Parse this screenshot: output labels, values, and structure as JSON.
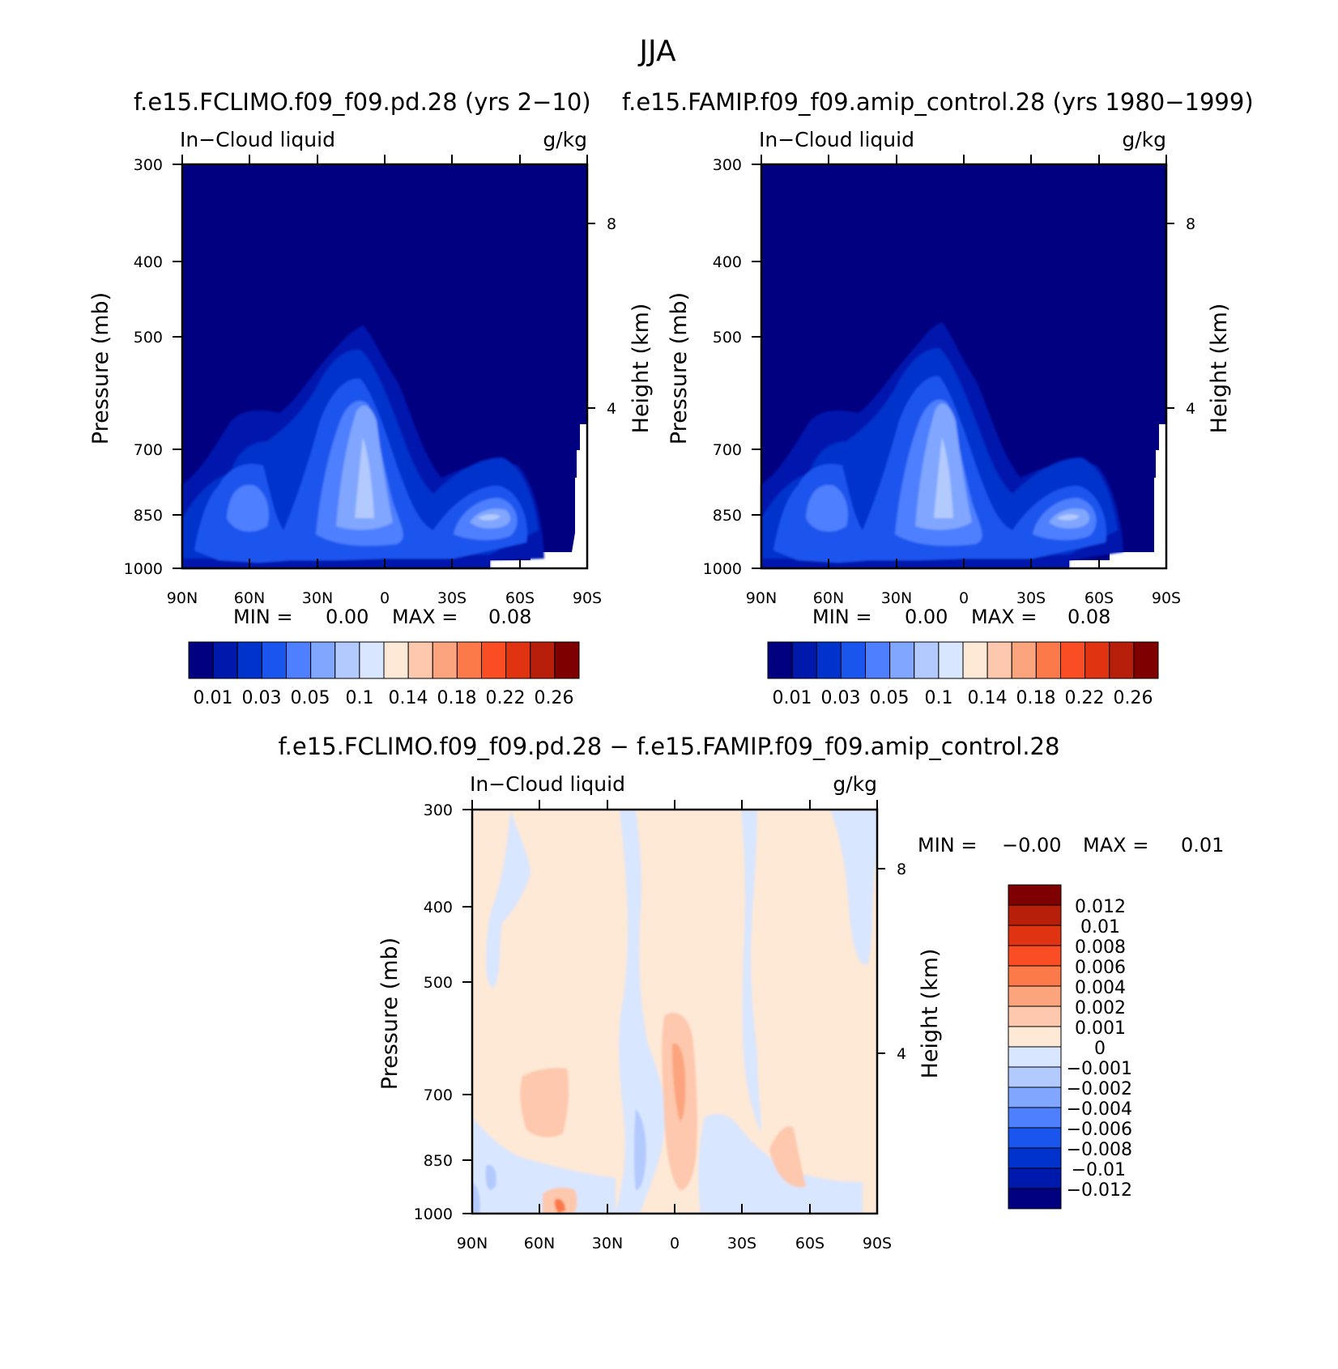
{
  "figure": {
    "suptitle": "JJA",
    "diff_title": "f.e15.FCLIMO.f09_f09.pd.28 − f.e15.FAMIP.f09_f09.amip_control.28"
  },
  "colors": {
    "abs_palette": [
      "#000080",
      "#0019ad",
      "#0033cc",
      "#1a55ee",
      "#4d7fff",
      "#80a6ff",
      "#b3caff",
      "#d9e6ff",
      "#fee8d6",
      "#fdc8ad",
      "#fca47e",
      "#fc7a4a",
      "#fa4d24",
      "#e03312",
      "#b81f0b",
      "#7f0000"
    ],
    "diff_palette": [
      "#000080",
      "#0019ad",
      "#0033cc",
      "#1a55ee",
      "#4d7fff",
      "#80a6ff",
      "#b3caff",
      "#d9e6ff",
      "#fee8d6",
      "#fdc8ad",
      "#fca47e",
      "#fc7a4a",
      "#fa4d24",
      "#e03312",
      "#b81f0b",
      "#7f0000"
    ]
  },
  "chart_data": [
    {
      "type": "heatmap",
      "title": "f.e15.FCLIMO.f09_f09.pd.28 (yrs 2−10)",
      "left_label": "In−Cloud liquid",
      "right_label": "g/kg",
      "ylabel": "Pressure (mb)",
      "ylabel_right": "Height (km)",
      "x_ticks": [
        "90N",
        "60N",
        "30N",
        "0",
        "30S",
        "60S",
        "90S"
      ],
      "y_ticks": [
        "300",
        "400",
        "500",
        "700",
        "850",
        "1000"
      ],
      "y_ticks_right": [
        "8",
        "4"
      ],
      "min_label": "MIN =",
      "min_value": "0.00",
      "max_label": "MAX =",
      "max_value": "0.08",
      "colorbar_ticks": [
        "0.01",
        "0.03",
        "0.05",
        "0.1",
        "0.14",
        "0.18",
        "0.22",
        "0.26"
      ]
    },
    {
      "type": "heatmap",
      "title": "f.e15.FAMIP.f09_f09.amip_control.28 (yrs 1980−1999)",
      "left_label": "In−Cloud liquid",
      "right_label": "g/kg",
      "ylabel": "Pressure (mb)",
      "ylabel_right": "Height (km)",
      "x_ticks": [
        "90N",
        "60N",
        "30N",
        "0",
        "30S",
        "60S",
        "90S"
      ],
      "y_ticks": [
        "300",
        "400",
        "500",
        "700",
        "850",
        "1000"
      ],
      "y_ticks_right": [
        "8",
        "4"
      ],
      "min_label": "MIN =",
      "min_value": "0.00",
      "max_label": "MAX =",
      "max_value": "0.08",
      "colorbar_ticks": [
        "0.01",
        "0.03",
        "0.05",
        "0.1",
        "0.14",
        "0.18",
        "0.22",
        "0.26"
      ]
    },
    {
      "type": "heatmap",
      "title": "f.e15.FCLIMO.f09_f09.pd.28 − f.e15.FAMIP.f09_f09.amip_control.28",
      "left_label": "In−Cloud liquid",
      "right_label": "g/kg",
      "ylabel": "Pressure (mb)",
      "ylabel_right": "Height (km)",
      "x_ticks": [
        "90N",
        "60N",
        "30N",
        "0",
        "30S",
        "60S",
        "90S"
      ],
      "y_ticks": [
        "300",
        "400",
        "500",
        "700",
        "850",
        "1000"
      ],
      "y_ticks_right": [
        "8",
        "4"
      ],
      "min_label": "MIN =",
      "min_value": "−0.00",
      "max_label": "MAX =",
      "max_value": "0.01",
      "colorbar_ticks": [
        "0.012",
        "0.01",
        "0.008",
        "0.006",
        "0.004",
        "0.002",
        "0.001",
        "0",
        "−0.001",
        "−0.002",
        "−0.004",
        "−0.006",
        "−0.008",
        "−0.01",
        "−0.012"
      ]
    }
  ]
}
